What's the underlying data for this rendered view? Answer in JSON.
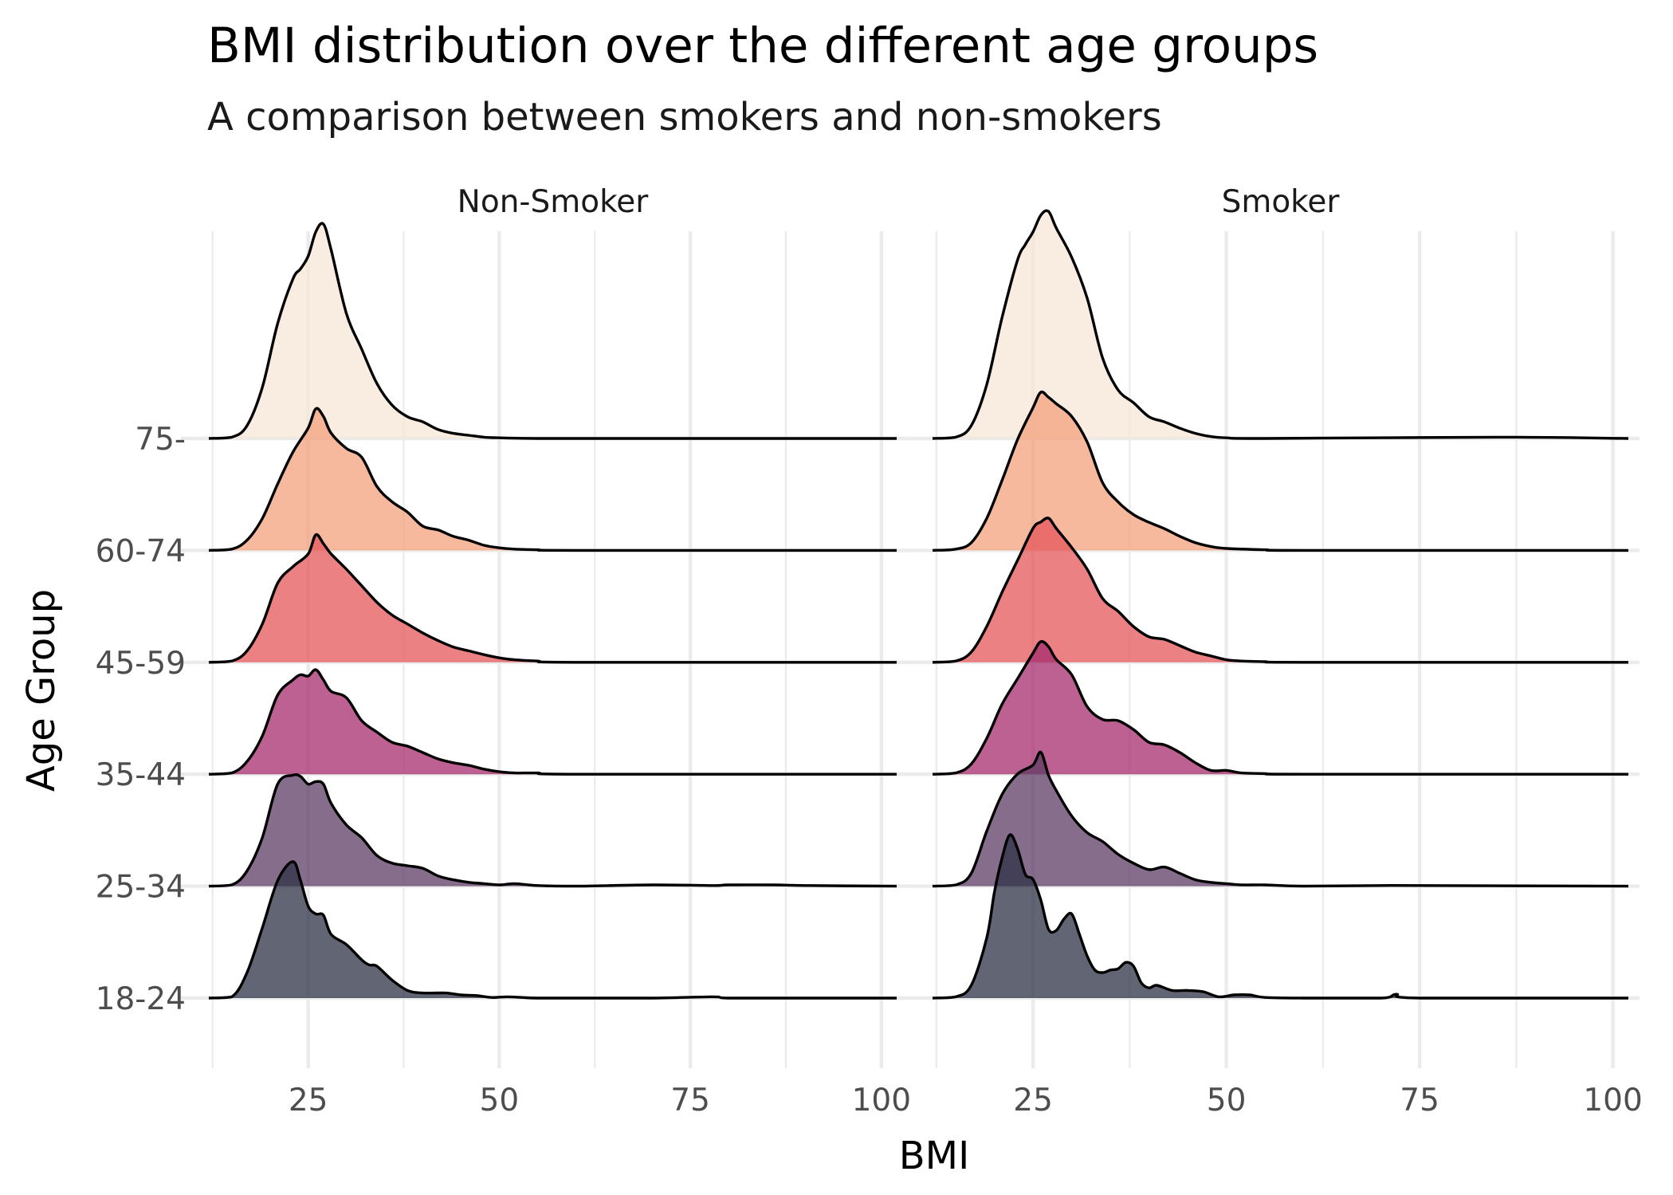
{
  "chart_data": {
    "type": "area",
    "subtype": "ridgeline",
    "title": "BMI distribution over the different age groups",
    "subtitle": "A comparison between smokers and non-smokers",
    "xlabel": "BMI",
    "ylabel": "Age Group",
    "xlim": [
      12,
      102
    ],
    "x_ticks": [
      25,
      50,
      75,
      100
    ],
    "x_tick_labels": [
      "25",
      "50",
      "75",
      "100"
    ],
    "categories": [
      "18-24",
      "25-34",
      "35-44",
      "45-59",
      "60-74",
      "75-"
    ],
    "grid": true,
    "legend": "none",
    "colors": {
      "18-24": "#2e3146",
      "25-34": "#5e3c66",
      "35-44": "#a52c6c",
      "45-59": "#e5575b",
      "60-74": "#f4a27d",
      "75-": "#f7e5d6"
    },
    "fill_opacity": 0.75,
    "panels": [
      {
        "name": "Non-Smoker",
        "series": [
          {
            "name": "18-24",
            "x": [
              12,
              15,
              17,
              19,
              21,
              23,
              24,
              25,
              26,
              27,
              28,
              30,
              32,
              33,
              34,
              36,
              38,
              40,
              43,
              45,
              47,
              49,
              51,
              53,
              55,
              60,
              70,
              78,
              80,
              90,
              102
            ],
            "y": [
              0,
              0.01,
              0.2,
              0.55,
              0.92,
              1.07,
              0.92,
              0.72,
              0.66,
              0.65,
              0.5,
              0.42,
              0.3,
              0.26,
              0.25,
              0.14,
              0.06,
              0.04,
              0.04,
              0.025,
              0.02,
              0.005,
              0.01,
              0.005,
              0,
              0,
              0,
              0.01,
              0,
              0,
              0
            ]
          },
          {
            "name": "25-34",
            "x": [
              12,
              15,
              17,
              19,
              21,
              23,
              24,
              25,
              26,
              27,
              28,
              30,
              32,
              34,
              36,
              38,
              40,
              42,
              44,
              46,
              48,
              50,
              52,
              55,
              60,
              70,
              78,
              80,
              86,
              90,
              102
            ],
            "y": [
              0,
              0.01,
              0.12,
              0.38,
              0.8,
              0.87,
              0.86,
              0.8,
              0.82,
              0.8,
              0.65,
              0.48,
              0.38,
              0.24,
              0.18,
              0.16,
              0.14,
              0.08,
              0.05,
              0.03,
              0.02,
              0.01,
              0.02,
              0.005,
              0,
              0.01,
              0.005,
              0.01,
              0.01,
              0.005,
              0
            ]
          },
          {
            "name": "35-44",
            "x": [
              12,
              15,
              17,
              19,
              21,
              23,
              24,
              25,
              26,
              27,
              28,
              30,
              32,
              34,
              36,
              38,
              40,
              42,
              44,
              46,
              48,
              50,
              52,
              55,
              60,
              102
            ],
            "y": [
              0,
              0.01,
              0.1,
              0.3,
              0.62,
              0.74,
              0.78,
              0.77,
              0.82,
              0.74,
              0.65,
              0.6,
              0.42,
              0.33,
              0.25,
              0.22,
              0.17,
              0.12,
              0.09,
              0.07,
              0.04,
              0.02,
              0.01,
              0.01,
              0,
              0
            ]
          },
          {
            "name": "45-59",
            "x": [
              12,
              15,
              17,
              19,
              21,
              23,
              25,
              26,
              27,
              28,
              30,
              32,
              34,
              36,
              38,
              40,
              42,
              44,
              46,
              48,
              50,
              52,
              55,
              60,
              102
            ],
            "y": [
              0,
              0.01,
              0.09,
              0.3,
              0.62,
              0.75,
              0.85,
              1.0,
              0.93,
              0.85,
              0.73,
              0.6,
              0.47,
              0.37,
              0.3,
              0.23,
              0.17,
              0.12,
              0.09,
              0.06,
              0.035,
              0.02,
              0.01,
              0,
              0
            ]
          },
          {
            "name": "60-74",
            "x": [
              12,
              15,
              17,
              19,
              21,
              23,
              25,
              26,
              27,
              28,
              30,
              32,
              34,
              36,
              38,
              40,
              42,
              44,
              46,
              48,
              50,
              52,
              55,
              60,
              102
            ],
            "y": [
              0,
              0.01,
              0.08,
              0.25,
              0.52,
              0.77,
              0.96,
              1.11,
              1.05,
              0.92,
              0.8,
              0.73,
              0.5,
              0.38,
              0.3,
              0.19,
              0.16,
              0.11,
              0.08,
              0.04,
              0.02,
              0.01,
              0.005,
              0,
              0
            ]
          },
          {
            "name": "75-",
            "x": [
              12,
              15,
              17,
              19,
              21,
              23,
              24,
              25,
              26,
              27,
              28,
              30,
              32,
              34,
              36,
              38,
              40,
              42,
              44,
              46,
              48,
              50,
              55,
              60,
              102
            ],
            "y": [
              0,
              0.01,
              0.1,
              0.4,
              0.9,
              1.25,
              1.33,
              1.43,
              1.62,
              1.68,
              1.48,
              0.98,
              0.7,
              0.43,
              0.26,
              0.17,
              0.13,
              0.07,
              0.04,
              0.025,
              0.01,
              0.005,
              0,
              0,
              0
            ]
          }
        ]
      },
      {
        "name": "Smoker",
        "series": [
          {
            "name": "18-24",
            "x": [
              12,
              15,
              17,
              19,
              20,
              21,
              22,
              23,
              24,
              25,
              26,
              27,
              28,
              29,
              30,
              31,
              32,
              33,
              34,
              35,
              36,
              37,
              38,
              39,
              40,
              41,
              43,
              45,
              47,
              49,
              51,
              53,
              55,
              60,
              70,
              72,
              75,
              102
            ],
            "y": [
              0,
              0.01,
              0.1,
              0.47,
              0.83,
              1.1,
              1.28,
              1.17,
              0.97,
              0.93,
              0.77,
              0.54,
              0.53,
              0.62,
              0.66,
              0.5,
              0.33,
              0.22,
              0.2,
              0.22,
              0.23,
              0.28,
              0.25,
              0.12,
              0.08,
              0.1,
              0.06,
              0.06,
              0.05,
              0.01,
              0.025,
              0.025,
              0.005,
              0,
              0,
              0.03,
              0,
              0
            ]
          },
          {
            "name": "25-34",
            "x": [
              12,
              15,
              17,
              19,
              21,
              23,
              25,
              26,
              27,
              28,
              30,
              32,
              34,
              36,
              38,
              40,
              42,
              44,
              46,
              48,
              50,
              52,
              55,
              60,
              70,
              75,
              102
            ],
            "y": [
              0,
              0.01,
              0.1,
              0.43,
              0.72,
              0.88,
              0.95,
              1.05,
              0.87,
              0.75,
              0.55,
              0.42,
              0.35,
              0.25,
              0.18,
              0.13,
              0.15,
              0.1,
              0.05,
              0.03,
              0.02,
              0.01,
              0.01,
              0,
              0.005,
              0.005,
              0
            ]
          },
          {
            "name": "35-44",
            "x": [
              12,
              15,
              17,
              19,
              21,
              23,
              25,
              26,
              27,
              28,
              30,
              32,
              34,
              36,
              38,
              40,
              42,
              44,
              46,
              48,
              50,
              52,
              55,
              60,
              102
            ],
            "y": [
              0,
              0.01,
              0.08,
              0.28,
              0.55,
              0.75,
              0.95,
              1.04,
              1.0,
              0.9,
              0.78,
              0.53,
              0.43,
              0.42,
              0.35,
              0.25,
              0.23,
              0.17,
              0.09,
              0.03,
              0.03,
              0.01,
              0.005,
              0,
              0
            ]
          },
          {
            "name": "45-59",
            "x": [
              12,
              15,
              17,
              19,
              21,
              23,
              25,
              26,
              27,
              28,
              30,
              32,
              34,
              36,
              38,
              40,
              42,
              44,
              46,
              48,
              50,
              52,
              55,
              60,
              102
            ],
            "y": [
              0,
              0.01,
              0.08,
              0.28,
              0.55,
              0.8,
              1.05,
              1.1,
              1.13,
              1.05,
              0.9,
              0.73,
              0.5,
              0.4,
              0.28,
              0.2,
              0.18,
              0.13,
              0.08,
              0.05,
              0.02,
              0.01,
              0.005,
              0,
              0
            ]
          },
          {
            "name": "60-74",
            "x": [
              12,
              15,
              17,
              19,
              21,
              23,
              25,
              26,
              27,
              28,
              30,
              32,
              34,
              36,
              38,
              40,
              42,
              44,
              46,
              48,
              50,
              55,
              60,
              102
            ],
            "y": [
              0,
              0.01,
              0.06,
              0.25,
              0.55,
              0.87,
              1.12,
              1.24,
              1.2,
              1.15,
              1.05,
              0.85,
              0.53,
              0.38,
              0.28,
              0.22,
              0.17,
              0.11,
              0.06,
              0.03,
              0.015,
              0.005,
              0,
              0
            ]
          },
          {
            "name": "75-",
            "x": [
              12,
              15,
              17,
              19,
              21,
              23,
              24,
              25,
              26,
              27,
              28,
              30,
              32,
              34,
              36,
              38,
              40,
              42,
              44,
              46,
              48,
              50,
              55,
              85,
              102
            ],
            "y": [
              0,
              0.01,
              0.1,
              0.42,
              0.95,
              1.4,
              1.52,
              1.62,
              1.75,
              1.78,
              1.65,
              1.42,
              1.1,
              0.63,
              0.38,
              0.28,
              0.17,
              0.13,
              0.08,
              0.04,
              0.015,
              0.005,
              0,
              0.01,
              0
            ]
          }
        ]
      }
    ]
  }
}
